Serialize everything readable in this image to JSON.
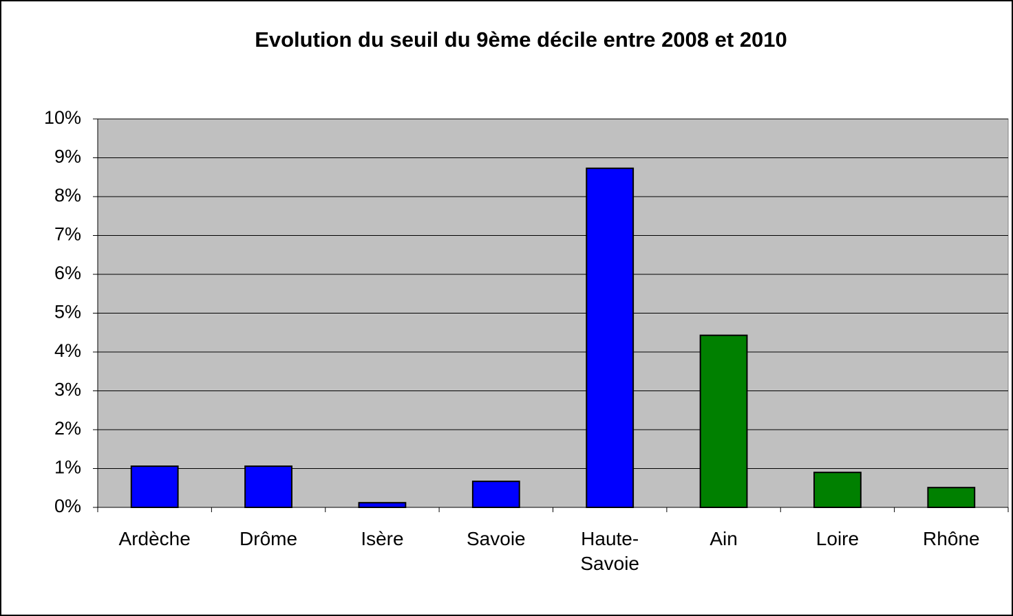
{
  "chart_data": {
    "type": "bar",
    "title": "Evolution du seuil du 9ème décile entre 2008 et 2010",
    "categories": [
      "Ardèche",
      "Drôme",
      "Isère",
      "Savoie",
      "Haute-Savoie",
      "Ain",
      "Loire",
      "Rhône"
    ],
    "values": [
      1.06,
      1.06,
      0.12,
      0.67,
      8.73,
      4.43,
      0.9,
      0.51
    ],
    "colors": [
      "#0000ff",
      "#0000ff",
      "#0000ff",
      "#0000ff",
      "#0000ff",
      "#008000",
      "#008000",
      "#008000"
    ],
    "ylim": [
      0,
      10
    ],
    "yticks": [
      {
        "value": 0,
        "label": "0%"
      },
      {
        "value": 1,
        "label": "1%"
      },
      {
        "value": 2,
        "label": "2%"
      },
      {
        "value": 3,
        "label": "3%"
      },
      {
        "value": 4,
        "label": "4%"
      },
      {
        "value": 5,
        "label": "5%"
      },
      {
        "value": 6,
        "label": "6%"
      },
      {
        "value": 7,
        "label": "7%"
      },
      {
        "value": 8,
        "label": "8%"
      },
      {
        "value": 9,
        "label": "9%"
      },
      {
        "value": 10,
        "label": "10%"
      }
    ],
    "grid": true
  }
}
